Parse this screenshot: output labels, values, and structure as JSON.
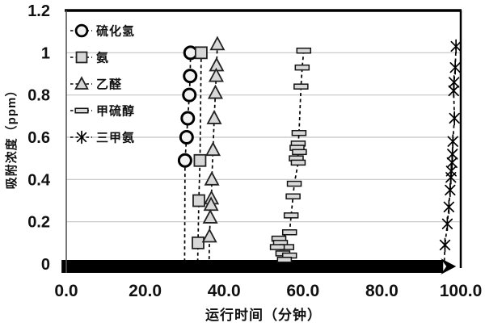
{
  "chart_data": {
    "type": "scatter",
    "title": "",
    "xlabel": "运行时间（分钟）",
    "ylabel": "吸附浓度（ppm）",
    "xlim": [
      0,
      100
    ],
    "ylim": [
      0,
      1.2
    ],
    "x_ticks": [
      "0.0",
      "20.0",
      "40.0",
      "60.0",
      "80.0",
      "100.0"
    ],
    "y_ticks": [
      "0",
      "0.2",
      "0.4",
      "0.6",
      "0.8",
      "1",
      "1.2"
    ],
    "grid": "horizontal gridlines every 0.2, light gray",
    "legend_position": "inside top-left, no border",
    "line_style": "dashed black connectors on all series",
    "series": [
      {
        "name": "硫化氢",
        "marker": "circle",
        "points": [
          [
            31.5,
            1.0
          ],
          [
            31.4,
            0.89
          ],
          [
            31.2,
            0.8
          ],
          [
            30.8,
            0.69
          ],
          [
            30.5,
            0.6
          ],
          [
            30.1,
            0.49
          ],
          [
            30.0,
            0.0
          ]
        ]
      },
      {
        "name": "氨",
        "marker": "square",
        "points": [
          [
            34.2,
            1.0
          ],
          [
            33.9,
            0.49
          ],
          [
            33.6,
            0.3
          ],
          [
            33.4,
            0.1
          ],
          [
            33.3,
            0.0
          ]
        ]
      },
      {
        "name": "乙醛",
        "marker": "triangle",
        "points": [
          [
            38.3,
            1.04
          ],
          [
            38.1,
            0.94
          ],
          [
            38.0,
            0.89
          ],
          [
            37.8,
            0.81
          ],
          [
            37.5,
            0.69
          ],
          [
            37.2,
            0.54
          ],
          [
            36.9,
            0.4
          ],
          [
            36.8,
            0.31
          ],
          [
            36.7,
            0.28
          ],
          [
            36.5,
            0.22
          ],
          [
            36.3,
            0.13
          ],
          [
            36.2,
            0.0
          ]
        ]
      },
      {
        "name": "甲硫醇",
        "marker": "hbar",
        "points": [
          [
            60.2,
            1.01
          ],
          [
            59.8,
            0.93
          ],
          [
            59.5,
            0.84
          ],
          [
            59.0,
            0.62
          ],
          [
            58.8,
            0.57
          ],
          [
            58.5,
            0.55
          ],
          [
            59.1,
            0.53
          ],
          [
            58.3,
            0.5
          ],
          [
            58.8,
            0.48
          ],
          [
            57.8,
            0.38
          ],
          [
            57.5,
            0.32
          ],
          [
            57.0,
            0.23
          ],
          [
            56.6,
            0.15
          ],
          [
            53.9,
            0.12
          ],
          [
            54.3,
            0.1
          ],
          [
            55.9,
            0.08
          ],
          [
            53.5,
            0.08
          ],
          [
            54.9,
            0.05
          ],
          [
            56.6,
            0.04
          ],
          [
            55.3,
            0.02
          ],
          [
            56.0,
            0.0
          ]
        ]
      },
      {
        "name": "三甲氨",
        "marker": "asterisk",
        "points": [
          [
            98.8,
            1.03
          ],
          [
            98.6,
            0.93
          ],
          [
            98.3,
            0.86
          ],
          [
            98.2,
            0.82
          ],
          [
            98.4,
            0.69
          ],
          [
            98.0,
            0.58
          ],
          [
            97.9,
            0.52
          ],
          [
            97.8,
            0.48
          ],
          [
            97.6,
            0.44
          ],
          [
            97.5,
            0.41
          ],
          [
            97.3,
            0.35
          ],
          [
            97.0,
            0.27
          ],
          [
            96.6,
            0.19
          ],
          [
            96.0,
            0.09
          ],
          [
            95.8,
            0.0
          ]
        ]
      }
    ],
    "baseline_band": {
      "note": "dense overlapping data points at 0 ppm forming a solid black band with arrow-like right tip",
      "x_range": [
        -1.2,
        98.0
      ],
      "y": 0
    }
  },
  "colors": {
    "marker_fill": "#d8d8d8",
    "circle_fill": "#f2f2f2",
    "stroke": "#000000",
    "gridline": "#c4c4c4",
    "frame": "#000000",
    "left_axis": "#555555",
    "band": "#000000"
  }
}
